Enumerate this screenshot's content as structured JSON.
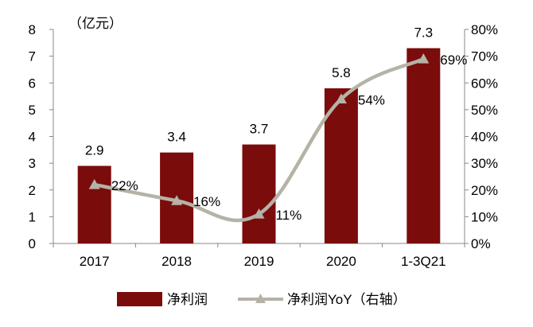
{
  "chart_data": {
    "type": "bar",
    "unit_label": "（亿元）",
    "categories": [
      "2017",
      "2018",
      "2019",
      "2020",
      "1-3Q21"
    ],
    "series": [
      {
        "name": "净利润",
        "type": "bar",
        "axis": "left",
        "values": [
          2.9,
          3.4,
          3.7,
          5.8,
          7.3
        ],
        "labels": [
          "2.9",
          "3.4",
          "3.7",
          "5.8",
          "7.3"
        ],
        "color": "#7b0c0c"
      },
      {
        "name": "净利润YoY（右轴）",
        "type": "line",
        "axis": "right",
        "values": [
          0.22,
          0.16,
          0.11,
          0.54,
          0.69
        ],
        "labels": [
          "22%",
          "16%",
          "11%",
          "54%",
          "69%"
        ],
        "color": "#b5b2a6"
      }
    ],
    "y_left": {
      "min": 0,
      "max": 8,
      "step": 1,
      "ticks": [
        "0",
        "1",
        "2",
        "3",
        "4",
        "5",
        "6",
        "7",
        "8"
      ]
    },
    "y_right": {
      "min": 0,
      "max": 0.8,
      "step": 0.1,
      "ticks": [
        "0%",
        "10%",
        "20%",
        "30%",
        "40%",
        "50%",
        "60%",
        "70%",
        "80%"
      ]
    },
    "grid": false,
    "legend_position": "bottom"
  }
}
